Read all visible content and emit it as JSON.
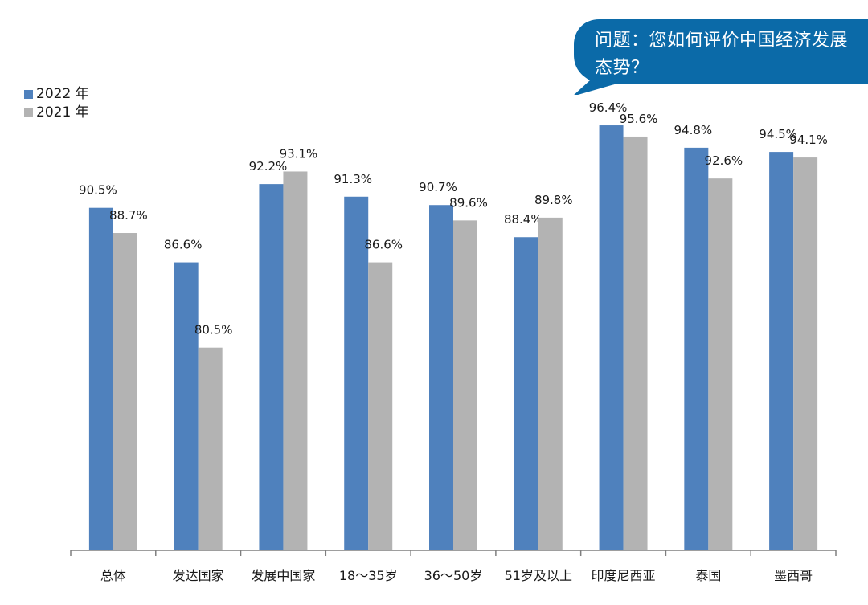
{
  "question": {
    "text": "问题：您如何评价中国经济发展态势？",
    "color": "#0b6aa8"
  },
  "colors": {
    "series_2022": "#4f81bd",
    "series_2021": "#b3b3b3",
    "axis": "#7f7f7f"
  },
  "chart_data": {
    "type": "bar",
    "categories": [
      "总体",
      "发达国家",
      "发展中国家",
      "18～35岁",
      "36～50岁",
      "51岁及以上",
      "印度尼西亚",
      "泰国",
      "墨西哥"
    ],
    "series": [
      {
        "name": "2022 年",
        "values": [
          90.5,
          86.6,
          92.2,
          91.3,
          90.7,
          88.4,
          96.4,
          94.8,
          94.5
        ]
      },
      {
        "name": "2021 年",
        "values": [
          88.7,
          80.5,
          93.1,
          86.6,
          89.6,
          89.8,
          95.6,
          92.6,
          94.1
        ]
      }
    ],
    "value_suffix": "%",
    "ylim": [
      66,
      97
    ],
    "grid": false,
    "legend": "top-left"
  }
}
